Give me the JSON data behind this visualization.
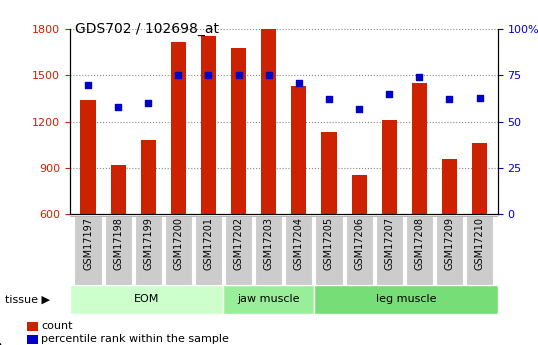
{
  "title": "GDS702 / 102698_at",
  "samples": [
    "GSM17197",
    "GSM17198",
    "GSM17199",
    "GSM17200",
    "GSM17201",
    "GSM17202",
    "GSM17203",
    "GSM17204",
    "GSM17205",
    "GSM17206",
    "GSM17207",
    "GSM17208",
    "GSM17209",
    "GSM17210"
  ],
  "counts": [
    1340,
    920,
    1080,
    1720,
    1755,
    1680,
    1800,
    1430,
    1130,
    855,
    1210,
    1450,
    960,
    1060
  ],
  "percentiles": [
    70,
    58,
    60,
    75,
    75,
    75,
    75,
    71,
    62,
    57,
    65,
    74,
    62,
    63
  ],
  "ylim_left": [
    600,
    1800
  ],
  "ylim_right": [
    0,
    100
  ],
  "yticks_left": [
    600,
    900,
    1200,
    1500,
    1800
  ],
  "yticks_right": [
    0,
    25,
    50,
    75,
    100
  ],
  "bar_color": "#cc2200",
  "dot_color": "#0000cc",
  "bar_width": 0.5,
  "group_spans": [
    {
      "label": "EOM",
      "start": 0,
      "end": 5,
      "color": "#ccffcc"
    },
    {
      "label": "jaw muscle",
      "start": 5,
      "end": 8,
      "color": "#99ee99"
    },
    {
      "label": "leg muscle",
      "start": 8,
      "end": 14,
      "color": "#77dd77"
    }
  ],
  "legend_count": "count",
  "legend_percentile": "percentile rank within the sample",
  "tick_bg": "#cccccc"
}
